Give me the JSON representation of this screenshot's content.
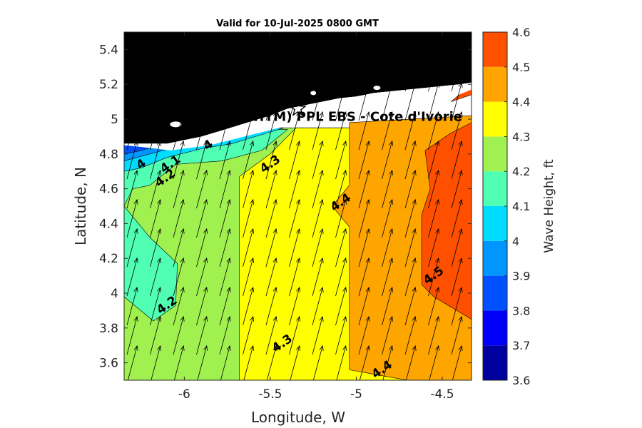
{
  "chart_data": {
    "type": "heatmap",
    "title": "Valid for 10-Jul-2025 0800 GMT",
    "xlabel": "Longitude, W",
    "ylabel": "Latitude, N",
    "xlim": [
      -6.35,
      -4.33
    ],
    "ylim": [
      3.5,
      5.5
    ],
    "x_ticks": [
      -6,
      -5.5,
      -5,
      -4.5
    ],
    "x_tick_labels": [
      "-6",
      "-5.5",
      "-5",
      "-4.5"
    ],
    "y_ticks": [
      3.6,
      3.8,
      4,
      4.2,
      4.4,
      4.6,
      4.8,
      5,
      5.2,
      5.4
    ],
    "y_tick_labels": [
      "3.6",
      "3.8",
      "4",
      "4.2",
      "4.4",
      "4.6",
      "4.8",
      "5",
      "5.2",
      "5.4"
    ],
    "colorbar": {
      "label": "Wave Height, ft",
      "range": [
        3.6,
        4.6
      ],
      "ticks": [
        3.6,
        3.7,
        3.8,
        3.9,
        4,
        4.1,
        4.2,
        4.3,
        4.4,
        4.5,
        4.6
      ],
      "tick_labels": [
        "3.6",
        "3.7",
        "3.8",
        "3.9",
        "4",
        "4.1",
        "4.2",
        "4.3",
        "4.4",
        "4.5",
        "4.6"
      ],
      "colors": [
        "#00009e",
        "#0000fa",
        "#0050ff",
        "#0096ff",
        "#00dcff",
        "#50ffb4",
        "#a0f050",
        "#ffff00",
        "#ffa500",
        "#ff5000"
      ]
    },
    "regions": [
      {
        "level": 4.2,
        "lon_range": [
          -6.35,
          -5.68
        ],
        "lat_range": [
          3.5,
          4.65
        ]
      },
      {
        "level": 4.1,
        "lon_range": [
          -6.35,
          -6.05
        ],
        "lat_range": [
          3.85,
          4.5
        ]
      },
      {
        "level": 4.3,
        "lon_range": [
          -5.68,
          -5.04
        ],
        "lat_range": [
          3.5,
          4.95
        ]
      },
      {
        "level": 4.4,
        "lon_range": [
          -5.04,
          -4.33
        ],
        "lat_range": [
          3.5,
          5.0
        ]
      },
      {
        "level": 4.5,
        "lon_range": [
          -4.6,
          -4.33
        ],
        "lat_range": [
          3.85,
          4.95
        ]
      }
    ],
    "contour_labels": [
      {
        "text": "4",
        "lon": -6.25,
        "lat": 4.74
      },
      {
        "text": "4.1",
        "lon": -6.08,
        "lat": 4.74
      },
      {
        "text": "4.2",
        "lon": -6.11,
        "lat": 4.66
      },
      {
        "text": "4",
        "lon": -5.86,
        "lat": 4.85
      },
      {
        "text": "4.3",
        "lon": -5.5,
        "lat": 4.74
      },
      {
        "text": "4.4",
        "lon": -5.09,
        "lat": 4.52
      },
      {
        "text": "4.2",
        "lon": -6.1,
        "lat": 3.93
      },
      {
        "text": "4.3",
        "lon": -5.43,
        "lat": 3.71
      },
      {
        "text": "4.4",
        "lon": -4.85,
        "lat": 3.56
      },
      {
        "text": "4.5",
        "lon": -4.55,
        "lat": 4.1
      }
    ],
    "site": {
      "label": "(ONHYM) PPL EBS - Cote d'Ivorie",
      "lon": -5.34,
      "lat": 5.06
    },
    "wind_arrow_direction_deg": 15,
    "land_color": "#000000",
    "grid": false
  }
}
